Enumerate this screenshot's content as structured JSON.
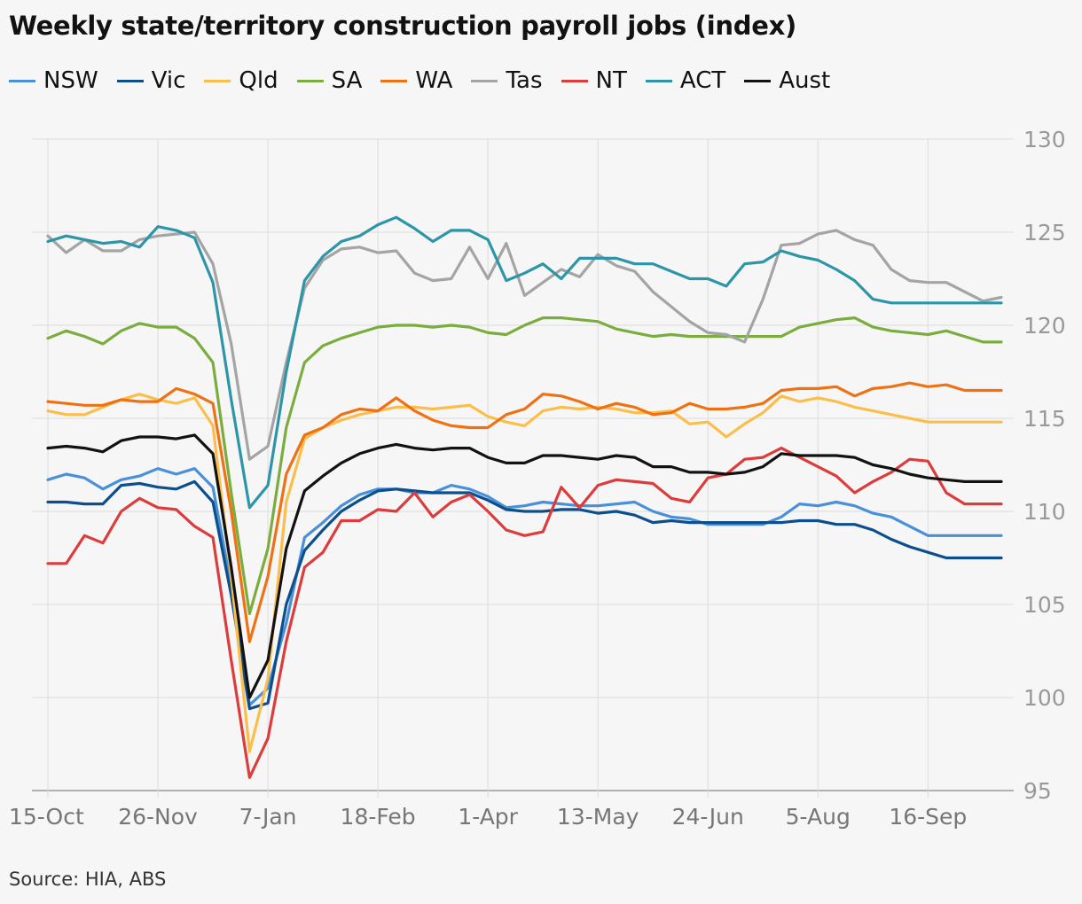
{
  "chart_data": {
    "type": "line",
    "title": "Weekly state/territory construction payroll jobs (index)",
    "source": "Source: HIA, ABS",
    "xlabel": "",
    "ylabel": "",
    "ylim": [
      95,
      130
    ],
    "yticks": [
      95,
      100,
      105,
      110,
      115,
      120,
      125,
      130
    ],
    "yaxis_position": "right",
    "grid": "vertical",
    "legend_position": "top",
    "x_tick_labels": [
      "15-Oct",
      "26-Nov",
      "7-Jan",
      "18-Feb",
      "1-Apr",
      "13-May",
      "24-Jun",
      "5-Aug",
      "16-Sep"
    ],
    "x_tick_indices": [
      0,
      6,
      12,
      18,
      24,
      30,
      36,
      42,
      48
    ],
    "num_points": 53,
    "series": [
      {
        "name": "NSW",
        "color": "#4a90d9",
        "values": [
          111.7,
          112.0,
          111.8,
          111.2,
          111.7,
          111.9,
          112.3,
          112.0,
          112.3,
          111.3,
          106.0,
          99.6,
          100.5,
          104.0,
          108.6,
          109.4,
          110.3,
          110.9,
          111.2,
          111.2,
          111.0,
          111.0,
          111.4,
          111.2,
          110.8,
          110.2,
          110.3,
          110.5,
          110.4,
          110.3,
          110.3,
          110.4,
          110.5,
          110.0,
          109.7,
          109.6,
          109.3,
          109.3,
          109.3,
          109.3,
          109.7,
          110.4,
          110.3,
          110.5,
          110.3,
          109.9,
          109.7,
          109.2,
          108.7,
          108.7,
          108.7,
          108.7,
          108.7
        ]
      },
      {
        "name": "Vic",
        "color": "#0c4f8c",
        "values": [
          110.5,
          110.5,
          110.4,
          110.4,
          111.4,
          111.5,
          111.3,
          111.2,
          111.6,
          110.5,
          105.5,
          99.4,
          99.7,
          105.0,
          107.9,
          109.0,
          110.0,
          110.6,
          111.1,
          111.2,
          111.1,
          111.0,
          111.0,
          111.0,
          110.6,
          110.1,
          110.0,
          110.0,
          110.1,
          110.1,
          109.9,
          110.0,
          109.8,
          109.4,
          109.5,
          109.4,
          109.4,
          109.4,
          109.4,
          109.4,
          109.4,
          109.5,
          109.5,
          109.3,
          109.3,
          109.0,
          108.5,
          108.1,
          107.8,
          107.5,
          107.5,
          107.5,
          107.5
        ]
      },
      {
        "name": "Qld",
        "color": "#fbbe4a",
        "values": [
          115.4,
          115.2,
          115.2,
          115.6,
          116.0,
          116.3,
          116.0,
          115.8,
          116.1,
          114.6,
          106.5,
          97.1,
          101.0,
          110.5,
          113.9,
          114.5,
          114.9,
          115.2,
          115.4,
          115.6,
          115.6,
          115.5,
          115.6,
          115.7,
          115.1,
          114.8,
          114.6,
          115.4,
          115.6,
          115.5,
          115.6,
          115.5,
          115.3,
          115.3,
          115.4,
          114.7,
          114.8,
          114.0,
          114.7,
          115.3,
          116.2,
          115.9,
          116.1,
          115.9,
          115.6,
          115.4,
          115.2,
          115.0,
          114.8,
          114.8,
          114.8,
          114.8,
          114.8
        ]
      },
      {
        "name": "SA",
        "color": "#7aad3d",
        "values": [
          119.3,
          119.7,
          119.4,
          119.0,
          119.7,
          120.1,
          119.9,
          119.9,
          119.3,
          118.0,
          111.0,
          104.5,
          108.0,
          114.5,
          118.0,
          118.9,
          119.3,
          119.6,
          119.9,
          120.0,
          120.0,
          119.9,
          120.0,
          119.9,
          119.6,
          119.5,
          120.0,
          120.4,
          120.4,
          120.3,
          120.2,
          119.8,
          119.6,
          119.4,
          119.5,
          119.4,
          119.4,
          119.4,
          119.4,
          119.4,
          119.4,
          119.9,
          120.1,
          120.3,
          120.4,
          119.9,
          119.7,
          119.6,
          119.5,
          119.7,
          119.4,
          119.1,
          119.1
        ]
      },
      {
        "name": "WA",
        "color": "#ee7213",
        "values": [
          115.9,
          115.8,
          115.7,
          115.7,
          116.0,
          115.9,
          115.9,
          116.6,
          116.3,
          115.8,
          110.0,
          103.0,
          106.5,
          112.0,
          114.1,
          114.5,
          115.2,
          115.5,
          115.4,
          116.1,
          115.4,
          114.9,
          114.6,
          114.5,
          114.5,
          115.2,
          115.5,
          116.3,
          116.2,
          115.9,
          115.5,
          115.8,
          115.6,
          115.2,
          115.3,
          115.8,
          115.5,
          115.5,
          115.6,
          115.8,
          116.5,
          116.6,
          116.6,
          116.7,
          116.2,
          116.6,
          116.7,
          116.9,
          116.7,
          116.8,
          116.5,
          116.5,
          116.5
        ]
      },
      {
        "name": "Tas",
        "color": "#a4a4a4",
        "values": [
          124.8,
          123.9,
          124.6,
          124.0,
          124.0,
          124.6,
          124.8,
          124.9,
          125.0,
          123.3,
          119.0,
          112.8,
          113.5,
          118.0,
          122.0,
          123.5,
          124.1,
          124.2,
          123.9,
          124.0,
          122.8,
          122.4,
          122.5,
          124.2,
          122.5,
          124.4,
          121.6,
          122.3,
          123.0,
          122.6,
          123.8,
          123.2,
          122.9,
          121.8,
          121.0,
          120.2,
          119.6,
          119.5,
          119.1,
          121.4,
          124.3,
          124.4,
          124.9,
          125.1,
          124.6,
          124.3,
          123.0,
          122.4,
          122.3,
          122.3,
          121.8,
          121.3,
          121.5
        ]
      },
      {
        "name": "NT",
        "color": "#dc3c3c",
        "values": [
          107.2,
          107.2,
          108.7,
          108.3,
          110.0,
          110.7,
          110.2,
          110.1,
          109.2,
          108.6,
          102.0,
          95.7,
          97.8,
          103.0,
          107.0,
          107.8,
          109.5,
          109.5,
          110.1,
          110.0,
          111.0,
          109.7,
          110.5,
          110.9,
          110.0,
          109.0,
          108.7,
          108.9,
          111.3,
          110.2,
          111.4,
          111.7,
          111.6,
          111.5,
          110.7,
          110.5,
          111.8,
          112.0,
          112.8,
          112.9,
          113.4,
          112.9,
          112.4,
          111.9,
          111.0,
          111.6,
          112.1,
          112.8,
          112.7,
          111.0,
          110.4,
          110.4,
          110.4
        ]
      },
      {
        "name": "ACT",
        "color": "#2c96a8",
        "values": [
          124.5,
          124.8,
          124.6,
          124.4,
          124.5,
          124.2,
          125.3,
          125.1,
          124.7,
          122.3,
          116.0,
          110.2,
          111.4,
          117.5,
          122.4,
          123.7,
          124.5,
          124.8,
          125.4,
          125.8,
          125.2,
          124.5,
          125.1,
          125.1,
          124.6,
          122.4,
          122.8,
          123.3,
          122.5,
          123.6,
          123.6,
          123.6,
          123.3,
          123.3,
          122.9,
          122.5,
          122.5,
          122.1,
          123.3,
          123.4,
          124.0,
          123.7,
          123.5,
          123.0,
          122.4,
          121.4,
          121.2,
          121.2,
          121.2,
          121.2,
          121.2,
          121.2,
          121.2
        ]
      },
      {
        "name": "Aust",
        "color": "#121212",
        "values": [
          113.4,
          113.5,
          113.4,
          113.2,
          113.8,
          114.0,
          114.0,
          113.9,
          114.1,
          113.1,
          107.0,
          100.0,
          102.0,
          108.0,
          111.1,
          111.9,
          112.6,
          113.1,
          113.4,
          113.6,
          113.4,
          113.3,
          113.4,
          113.4,
          112.9,
          112.6,
          112.6,
          113.0,
          113.0,
          112.9,
          112.8,
          113.0,
          112.9,
          112.4,
          112.4,
          112.1,
          112.1,
          112.0,
          112.1,
          112.4,
          113.1,
          113.0,
          113.0,
          113.0,
          112.9,
          112.5,
          112.3,
          112.0,
          111.8,
          111.7,
          111.6,
          111.6,
          111.6
        ]
      }
    ]
  }
}
